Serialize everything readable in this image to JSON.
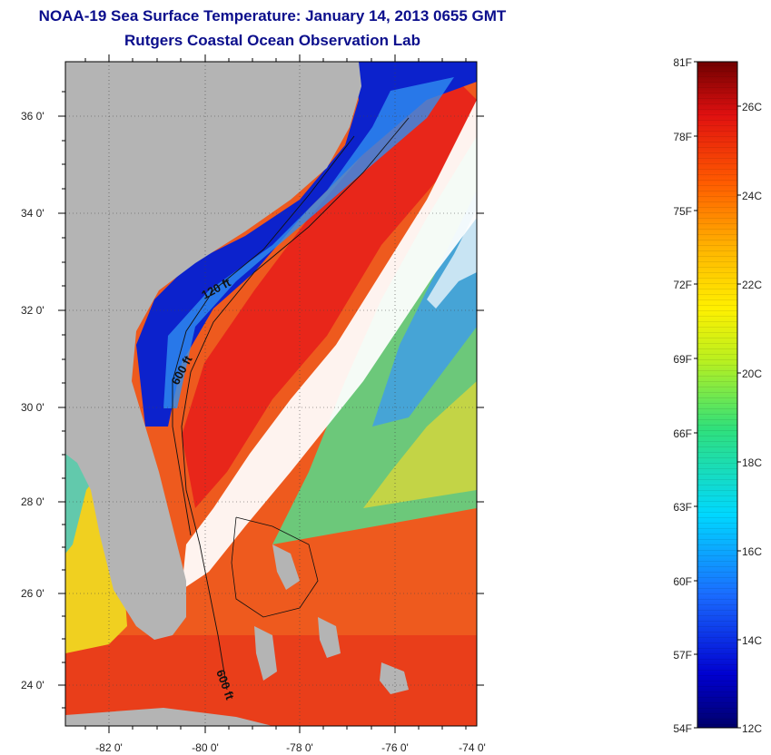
{
  "title": {
    "line1": "NOAA-19 Sea Surface Temperature:  January 14, 2013 0655 GMT",
    "line2": "Rutgers Coastal Ocean Observation Lab"
  },
  "map": {
    "lat_labels": [
      "36 0'",
      "34 0'",
      "32 0'",
      "30 0'",
      "28 0'",
      "26 0'",
      "24 0'"
    ],
    "lon_labels": [
      "-82 0'",
      "-80 0'",
      "-78 0'",
      "-76 0'",
      "-74 0'"
    ],
    "contour_labels": [
      "120 ft",
      "600 ft",
      "600 ft"
    ],
    "colors": {
      "land": "#b4b4b4",
      "cloud": "#ffffff",
      "cold": "#0a14c8",
      "warm": "#e8321a"
    }
  },
  "colorbar": {
    "fahrenheit_labels": [
      "81F",
      "78F",
      "75F",
      "72F",
      "69F",
      "66F",
      "63F",
      "60F",
      "57F",
      "54F"
    ],
    "celsius_labels": [
      "26C",
      "24C",
      "22C",
      "20C",
      "18C",
      "16C",
      "14C",
      "12C"
    ]
  }
}
